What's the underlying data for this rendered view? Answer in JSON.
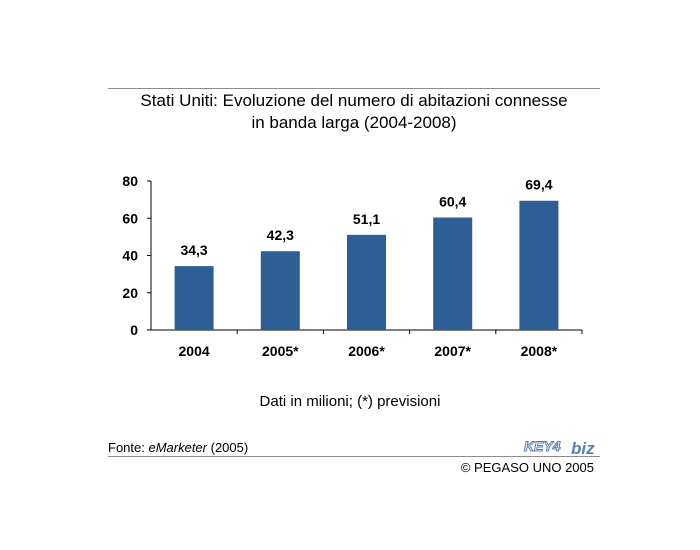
{
  "header": {
    "title_line1": "Stati Uniti: Evoluzione del numero di abitazioni connesse",
    "title_line2": "in banda larga (2004-2008)"
  },
  "chart_data": {
    "type": "bar",
    "categories": [
      "2004",
      "2005*",
      "2006*",
      "2007*",
      "2008*"
    ],
    "values": [
      34.3,
      42.3,
      51.1,
      60.4,
      69.4
    ],
    "value_labels": [
      "34,3",
      "42,3",
      "51,1",
      "60,4",
      "69,4"
    ],
    "ylim": [
      0,
      80
    ],
    "yticks": [
      "0",
      "20",
      "40",
      "60",
      "80"
    ],
    "grid": false,
    "bar_color": "#2d5f96"
  },
  "footer": {
    "note": "Dati in milioni; (*) previsioni",
    "source_prefix": "Fonte: ",
    "source_name": "eMarketer",
    "source_suffix": " (2005)",
    "logo_text_key": "KEY4",
    "logo_text_biz": "biz",
    "copyright": "© PEGASO UNO 2005"
  },
  "colors": {
    "bar": "#2d5f96",
    "logo": "#5a7db8",
    "rule": "#8c8c8c"
  }
}
